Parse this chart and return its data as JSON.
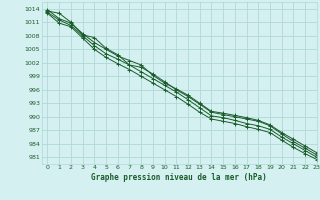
{
  "title": "Graphe pression niveau de la mer (hPa)",
  "bg_color": "#d5f0f0",
  "grid_color": "#b0d8d8",
  "line_color": "#1a5c2a",
  "xlim": [
    -0.5,
    23
  ],
  "ylim": [
    979.5,
    1015.5
  ],
  "yticks": [
    981,
    984,
    987,
    990,
    993,
    996,
    999,
    1002,
    1005,
    1008,
    1011,
    1014
  ],
  "xticks": [
    0,
    1,
    2,
    3,
    4,
    5,
    6,
    7,
    8,
    9,
    10,
    11,
    12,
    13,
    14,
    15,
    16,
    17,
    18,
    19,
    20,
    21,
    22,
    23
  ],
  "series": [
    [
      1013.5,
      1013.0,
      1011.0,
      1008.2,
      1007.6,
      1005.2,
      1003.8,
      1001.5,
      1001.0,
      999.5,
      997.8,
      996.0,
      994.5,
      992.8,
      991.0,
      990.5,
      990.0,
      989.5,
      989.0,
      988.0,
      986.2,
      984.5,
      983.0,
      981.5
    ],
    [
      1013.8,
      1011.8,
      1010.8,
      1008.5,
      1006.5,
      1005.0,
      1003.5,
      1002.5,
      1001.5,
      999.2,
      997.5,
      996.2,
      994.8,
      993.0,
      991.2,
      990.8,
      990.3,
      989.8,
      989.2,
      988.2,
      986.5,
      985.0,
      983.5,
      982.0
    ],
    [
      1013.2,
      1011.5,
      1010.3,
      1008.0,
      1005.8,
      1004.0,
      1002.8,
      1001.5,
      1000.0,
      998.5,
      997.0,
      995.5,
      993.8,
      992.0,
      990.2,
      989.8,
      989.2,
      988.5,
      988.0,
      987.2,
      985.5,
      984.0,
      982.5,
      981.0
    ],
    [
      1013.0,
      1010.8,
      1010.0,
      1007.5,
      1005.0,
      1003.2,
      1001.8,
      1000.5,
      999.0,
      997.5,
      996.0,
      994.5,
      992.8,
      991.0,
      989.5,
      989.0,
      988.5,
      987.8,
      987.2,
      986.5,
      984.8,
      983.2,
      981.8,
      980.5
    ]
  ]
}
